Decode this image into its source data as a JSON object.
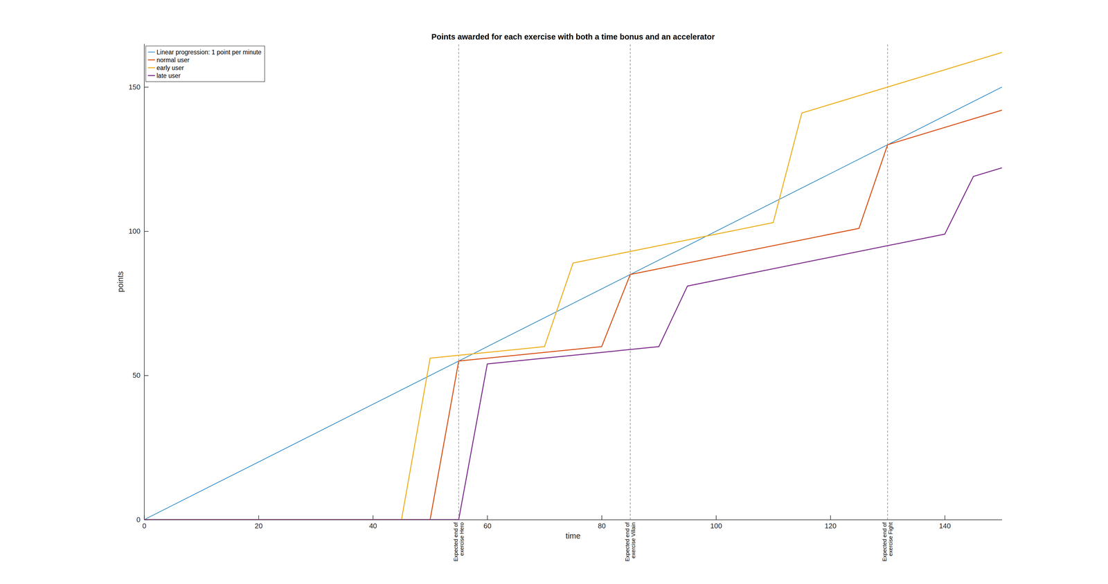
{
  "chart_data": {
    "type": "line",
    "title": "Points awarded for each exercise with both a time bonus and an accelerator",
    "x_label": "time",
    "y_label": "points",
    "xlim": [
      0,
      150
    ],
    "ylim": [
      0,
      165
    ],
    "xticks": [
      0,
      20,
      40,
      60,
      80,
      100,
      120,
      140
    ],
    "yticks": [
      0,
      50,
      100,
      150
    ],
    "legend": "upper left",
    "series": [
      {
        "name": "Linear progression: 1 point per minute",
        "color": "#0072bd",
        "x": [
          0,
          150
        ],
        "values": [
          0,
          150
        ]
      },
      {
        "name": "normal user",
        "color": "#d95319",
        "x": [
          0,
          50,
          55,
          80,
          85,
          125,
          130,
          150
        ],
        "values": [
          0,
          0,
          55,
          60,
          85,
          101,
          130,
          142
        ]
      },
      {
        "name": "early user",
        "color": "#edb120",
        "x": [
          0,
          45,
          50,
          70,
          75,
          110,
          115,
          150
        ],
        "values": [
          0,
          0,
          56,
          60,
          89,
          103,
          141,
          162
        ]
      },
      {
        "name": "late user",
        "color": "#7e2f8e",
        "x": [
          0,
          55,
          60,
          90,
          95,
          140,
          145,
          150
        ],
        "values": [
          0,
          0,
          54,
          60,
          81,
          99,
          119,
          122
        ]
      }
    ],
    "annotations": [
      {
        "x": 55,
        "text": [
          "Expected end of",
          "exercise Hero"
        ]
      },
      {
        "x": 85,
        "text": [
          "Expected end of",
          "exercise Villain"
        ]
      },
      {
        "x": 130,
        "text": [
          "Expected end of",
          "exercise Fight"
        ]
      }
    ]
  }
}
